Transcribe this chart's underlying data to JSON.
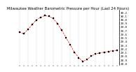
{
  "title": "Milwaukee Weather Barometric Pressure per Hour (Last 24 Hours)",
  "hours": [
    0,
    1,
    2,
    3,
    4,
    5,
    6,
    7,
    8,
    9,
    10,
    11,
    12,
    13,
    14,
    15,
    16,
    17,
    18,
    19,
    20,
    21,
    22,
    23
  ],
  "pressure": [
    29.65,
    29.6,
    29.72,
    29.85,
    29.98,
    30.05,
    30.1,
    30.08,
    30.02,
    29.88,
    29.7,
    29.5,
    29.3,
    29.1,
    28.95,
    28.85,
    28.9,
    29.0,
    29.05,
    29.08,
    29.1,
    29.12,
    29.14,
    29.15
  ],
  "line_color": "#ff0000",
  "marker_color": "#000000",
  "bg_color": "#ffffff",
  "grid_color": "#999999",
  "ylim": [
    28.75,
    30.25
  ],
  "yticks": [
    28.8,
    28.9,
    29.0,
    29.1,
    29.2,
    29.3,
    29.4,
    29.5,
    29.6,
    29.7,
    29.8,
    29.9,
    30.0,
    30.1,
    30.2
  ],
  "ytick_labels": [
    "28.8",
    "28.9",
    "29.0",
    "29.1",
    "29.2",
    "29.3",
    "29.4",
    "29.5",
    "29.6",
    "29.7",
    "29.8",
    "29.9",
    "30.0",
    "30.1",
    "30.2"
  ],
  "title_fontsize": 3.8,
  "tick_fontsize": 3.0,
  "line_width": 0.5,
  "marker_size": 1.5
}
